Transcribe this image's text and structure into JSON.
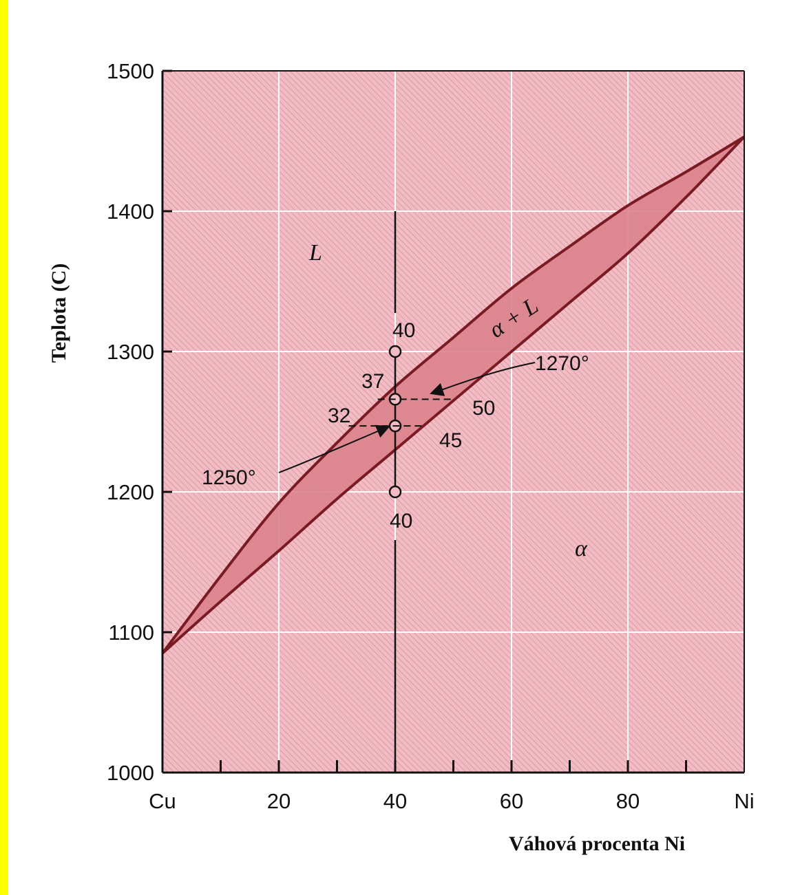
{
  "chart_data": {
    "type": "line",
    "title": "",
    "xlabel": "Váhová procenta Ni",
    "ylabel": "Teplota (C)",
    "xlim": [
      0,
      100
    ],
    "ylim": [
      1000,
      1500
    ],
    "x_ticks": [
      0,
      20,
      40,
      60,
      80,
      100
    ],
    "x_tick_labels": [
      "Cu",
      "20",
      "40",
      "60",
      "80",
      "Ni"
    ],
    "x_minor_ticks": [
      10,
      30,
      50,
      70,
      90
    ],
    "y_ticks": [
      1000,
      1100,
      1200,
      1300,
      1400,
      1500
    ],
    "y_tick_labels": [
      "1000",
      "1100",
      "1200",
      "1300",
      "1400",
      "1500"
    ],
    "grid": true,
    "series": [
      {
        "id": "liquidus",
        "x": [
          0,
          10,
          20,
          30,
          40,
          50,
          60,
          70,
          80,
          90,
          100
        ],
        "y": [
          1085,
          1140,
          1192,
          1235,
          1275,
          1310,
          1345,
          1375,
          1404,
          1428,
          1453
        ]
      },
      {
        "id": "solidus",
        "x": [
          0,
          10,
          20,
          30,
          40,
          50,
          60,
          70,
          80,
          90,
          100
        ],
        "y": [
          1085,
          1122,
          1158,
          1195,
          1230,
          1265,
          1300,
          1335,
          1370,
          1410,
          1453
        ]
      }
    ],
    "vertical_line_x": 40,
    "vertical_line_y": [
      1000,
      1400
    ],
    "points": [
      {
        "x": 40,
        "y": 1300
      },
      {
        "x": 40,
        "y": 1266
      },
      {
        "x": 40,
        "y": 1247
      },
      {
        "x": 40,
        "y": 1200
      }
    ],
    "annotations": {
      "label_40_top": "40",
      "label_37": "37",
      "label_32": "32",
      "label_50": "50",
      "label_45": "45",
      "label_40_bottom": "40",
      "label_1270": "1270°",
      "label_1250": "1250°"
    },
    "regions": {
      "liquid": "L",
      "two_phase": "α + L",
      "solid": "α"
    },
    "colors": {
      "background_fill": "#f2bcc4",
      "hatch": "#d6909c",
      "two_phase_fill": "#dc828c",
      "curve": "#7a1a22",
      "grid": "#ffffff",
      "frame": "#ffff00"
    }
  }
}
